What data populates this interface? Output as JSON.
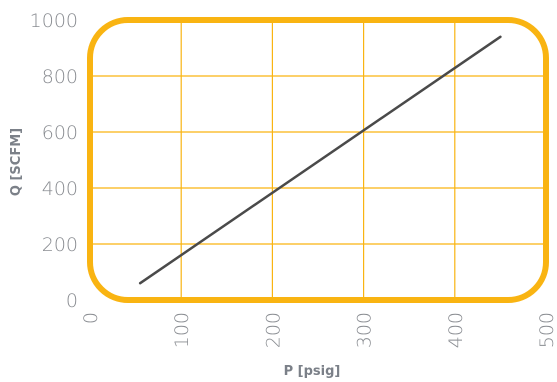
{
  "chart_data": {
    "type": "line",
    "xlabel": "P [psig]",
    "ylabel": "Q [SCFM]",
    "xlim": [
      0,
      500
    ],
    "ylim": [
      0,
      1000
    ],
    "x_ticks": [
      "0",
      "100",
      "200",
      "300",
      "400",
      "500"
    ],
    "y_ticks": [
      "0",
      "200",
      "400",
      "600",
      "800",
      "1000"
    ],
    "grid": true,
    "series": [
      {
        "x": [
          55,
          450
        ],
        "y": [
          60,
          940
        ]
      }
    ],
    "colors": {
      "frame": "#F9B412",
      "grid": "#F9B412",
      "line": "#4a4a4a",
      "tick_text": "#8a8d92",
      "axis_label": "#7b8088"
    }
  }
}
